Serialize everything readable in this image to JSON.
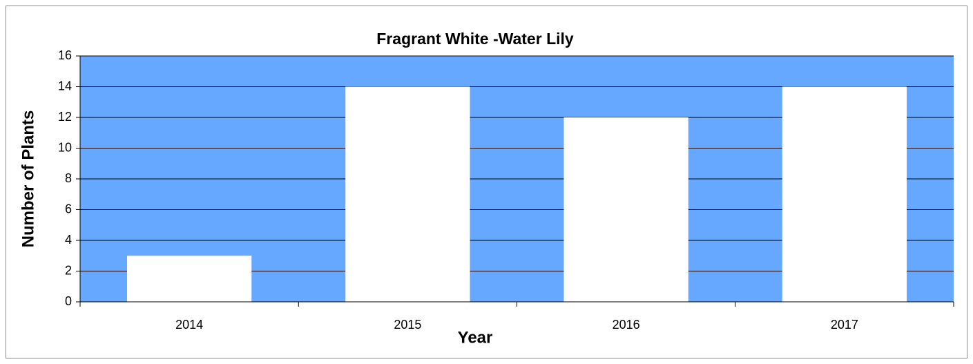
{
  "chart_data": {
    "type": "bar",
    "title": "Fragrant White -Water Lily",
    "categories": [
      "2014",
      "2015",
      "2016",
      "2017"
    ],
    "values": [
      3,
      14,
      12,
      14
    ],
    "color": "#ffffff",
    "plot_background": "#66a8ff",
    "xlabel": "Year",
    "ylabel": "Number of Plants",
    "ylim": [
      0,
      16
    ],
    "yticks": [
      0,
      2,
      4,
      6,
      8,
      10,
      12,
      14,
      16
    ],
    "grid": true
  }
}
